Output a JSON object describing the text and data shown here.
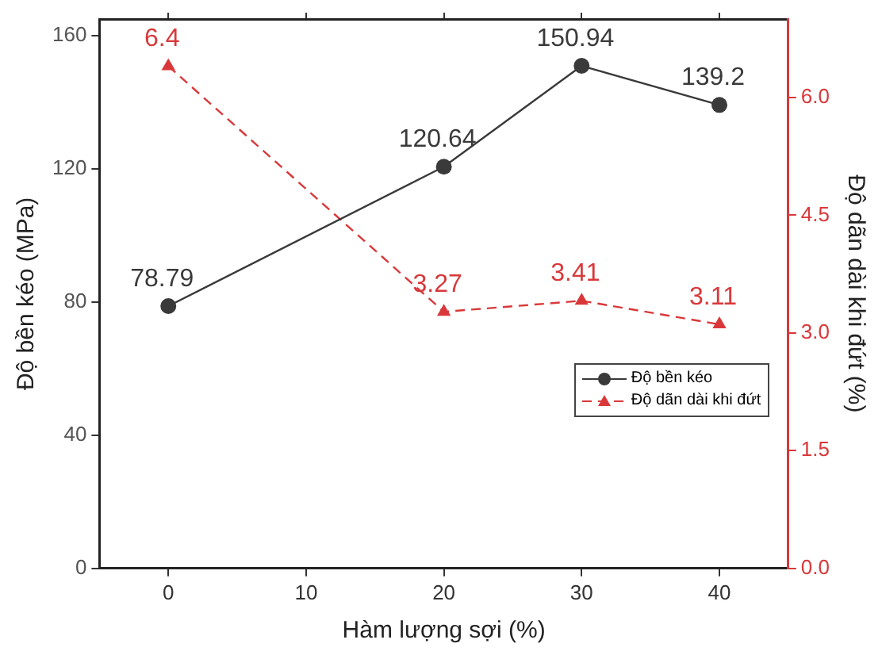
{
  "chart_data": {
    "type": "line",
    "xlabel": "Hàm lượng sợi (%)",
    "ylabel": "Độ bền kéo (MPa)",
    "y2label": "Độ dãn dài khi đứt (%)",
    "x": [
      0,
      20,
      30,
      40
    ],
    "xlim": [
      -5,
      45
    ],
    "xticks": [
      0,
      10,
      20,
      30,
      40
    ],
    "ylim": [
      0,
      165
    ],
    "yticks": [
      0,
      40,
      80,
      120,
      160
    ],
    "y2lim": [
      0,
      7
    ],
    "y2ticks": [
      {
        "value": 0,
        "label": "0.0"
      },
      {
        "value": 1.5,
        "label": "1.5"
      },
      {
        "value": 3,
        "label": "3.0"
      },
      {
        "value": 4.5,
        "label": "4.5"
      },
      {
        "value": 6,
        "label": "6.0"
      }
    ],
    "series": [
      {
        "name": "Độ bền kéo",
        "color": "#3a3a3a",
        "values": [
          78.79,
          120.64,
          150.94,
          139.2
        ],
        "marker": "circle",
        "line_style": "solid"
      },
      {
        "name": "Độ dãn dài khi đứt",
        "color": "#d9383a",
        "values": [
          6.4,
          3.27,
          3.41,
          3.11
        ],
        "axis": "y2",
        "marker": "triangle",
        "line_style": "dashed"
      }
    ],
    "data_labels": true,
    "legend": "bottom right",
    "grid": false
  }
}
